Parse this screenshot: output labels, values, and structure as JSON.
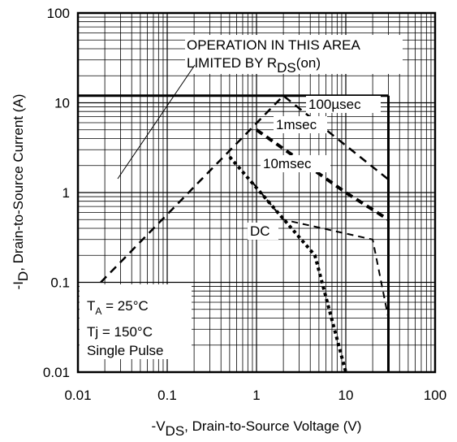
{
  "chart_data": {
    "type": "line",
    "x_scale": "log",
    "y_scale": "log",
    "xlim": [
      0.01,
      100
    ],
    "ylim": [
      0.01,
      100
    ],
    "grid": true,
    "x_ticks": [
      "0.01",
      "0.1",
      "1",
      "10",
      "100"
    ],
    "y_ticks": [
      "100",
      "10",
      "1",
      "0.1",
      "0.01"
    ],
    "xlabel": {
      "prefix": "-V",
      "sub": "DS",
      "rest": ", Drain-to-Source Voltage (V)"
    },
    "ylabel": {
      "prefix": "-I",
      "sub": "D",
      "rest": ",  Drain-to-Source Current (A)"
    },
    "annotation": {
      "line1": "OPERATION IN THIS AREA",
      "line2_prefix": "LIMITED BY R",
      "line2_sub": "DS",
      "line2_suffix": "(on)"
    },
    "conditions": {
      "ta_prefix": "T",
      "ta_sub": "A",
      "ta_rest": " = 25°C",
      "tj": "Tj = 150°C",
      "pulse": "Single Pulse"
    },
    "limits": {
      "current_max": 12,
      "voltage_max": 30
    },
    "series": [
      {
        "name": "100µsec",
        "points": [
          [
            0.018,
            0.1
          ],
          [
            2.0,
            12
          ],
          [
            30,
            1.4
          ]
        ]
      },
      {
        "name": "1msec",
        "points": [
          [
            1.0,
            5.0
          ],
          [
            10,
            1.0
          ],
          [
            30,
            0.5
          ]
        ]
      },
      {
        "name": "10msec",
        "points": [
          [
            0.9,
            1.3
          ],
          [
            2.0,
            0.5
          ],
          [
            20,
            0.3
          ],
          [
            30,
            0.04
          ]
        ]
      },
      {
        "name": "DC",
        "points": [
          [
            0.5,
            2.5
          ],
          [
            4.5,
            0.2
          ],
          [
            10,
            0.01
          ]
        ]
      }
    ]
  }
}
